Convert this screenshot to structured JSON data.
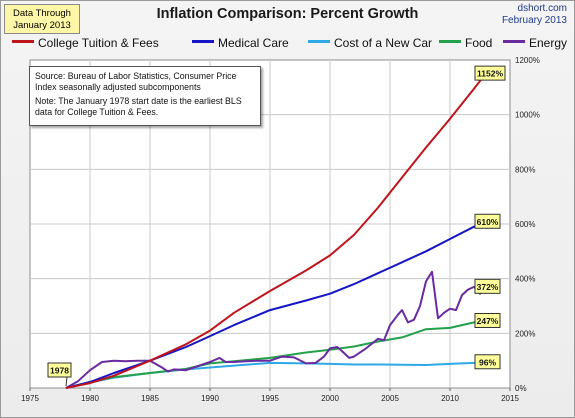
{
  "note": {
    "line1": "Data Through",
    "line2": "January 2013"
  },
  "title": "Inflation Comparison: Percent Growth",
  "credit": {
    "site": "dshort.com",
    "date": "February 2013"
  },
  "source_text": "Source: Bureau of Labor Statistics, Consumer Price Index seasonally adjusted subcomponents",
  "note_text": "Note: The January 1978 start date is the earliest BLS data for College Tuition & Fees.",
  "start_label": "1978",
  "colors": {
    "tuition": "#c0141c",
    "medical": "#1515c8",
    "car": "#2ea8e6",
    "food": "#23a04a",
    "energy": "#6a2aa0",
    "label_bg": "#ffff9a",
    "grid": "#c8c8c8"
  },
  "chart_data": {
    "type": "line",
    "title": "Inflation Comparison: Percent Growth",
    "xlim": [
      1975,
      2015
    ],
    "ylim": [
      0,
      1200
    ],
    "x_ticks": [
      1975,
      1980,
      1985,
      1990,
      1995,
      2000,
      2005,
      2010,
      2015
    ],
    "y_ticks": [
      0,
      200,
      400,
      600,
      800,
      1000,
      1200
    ],
    "y_tick_labels": [
      "0%",
      "200%",
      "400%",
      "600%",
      "800%",
      "1000%",
      "1200%"
    ],
    "grid": true,
    "legend": "top",
    "series": [
      {
        "key": "tuition",
        "name": "College Tuition & Fees",
        "end_label": "1152%",
        "x": [
          1978,
          1980,
          1982,
          1985,
          1988,
          1990,
          1992,
          1995,
          1998,
          2000,
          2002,
          2004,
          2006,
          2008,
          2010,
          2012,
          2013
        ],
        "y": [
          0,
          18,
          45,
          100,
          160,
          210,
          275,
          355,
          430,
          485,
          560,
          660,
          770,
          880,
          985,
          1095,
          1152
        ]
      },
      {
        "key": "medical",
        "name": "Medical Care",
        "end_label": "610%",
        "x": [
          1978,
          1980,
          1982,
          1985,
          1988,
          1990,
          1992,
          1995,
          1998,
          2000,
          2002,
          2004,
          2006,
          2008,
          2010,
          2012,
          2013
        ],
        "y": [
          0,
          22,
          55,
          100,
          150,
          190,
          230,
          285,
          320,
          345,
          380,
          420,
          460,
          500,
          545,
          590,
          610
        ]
      },
      {
        "key": "car",
        "name": "Cost of a New Car",
        "end_label": "96%",
        "x": [
          1978,
          1980,
          1982,
          1985,
          1988,
          1990,
          1992,
          1995,
          1998,
          2000,
          2002,
          2004,
          2006,
          2008,
          2010,
          2012,
          2013
        ],
        "y": [
          0,
          20,
          38,
          55,
          68,
          75,
          82,
          92,
          90,
          88,
          86,
          86,
          85,
          84,
          88,
          92,
          96
        ]
      },
      {
        "key": "food",
        "name": "Food",
        "end_label": "247%",
        "x": [
          1978,
          1980,
          1982,
          1985,
          1988,
          1990,
          1992,
          1995,
          1998,
          2000,
          2002,
          2004,
          2006,
          2008,
          2010,
          2012,
          2013
        ],
        "y": [
          0,
          22,
          40,
          55,
          70,
          90,
          98,
          110,
          130,
          140,
          152,
          170,
          185,
          215,
          220,
          240,
          247
        ]
      },
      {
        "key": "energy",
        "name": "Energy",
        "end_label": "372%",
        "x": [
          1978,
          1979,
          1980,
          1981,
          1982,
          1983,
          1984,
          1985,
          1986,
          1986.5,
          1987,
          1988,
          1989,
          1990,
          1990.8,
          1991.3,
          1992,
          1993,
          1994,
          1995,
          1996,
          1997,
          1998,
          1998.8,
          1999.5,
          2000,
          2000.6,
          2001,
          2001.6,
          2002,
          2003,
          2004,
          2004.5,
          2005,
          2005.7,
          2006,
          2006.5,
          2007,
          2007.5,
          2008,
          2008.5,
          2009,
          2009.5,
          2010,
          2010.5,
          2011,
          2011.5,
          2012,
          2012.5,
          2013
        ],
        "y": [
          0,
          25,
          65,
          95,
          100,
          98,
          100,
          100,
          75,
          60,
          68,
          65,
          80,
          95,
          110,
          95,
          95,
          98,
          100,
          100,
          115,
          112,
          90,
          92,
          115,
          145,
          150,
          135,
          110,
          115,
          145,
          180,
          175,
          230,
          270,
          285,
          240,
          250,
          300,
          390,
          425,
          255,
          275,
          290,
          285,
          340,
          360,
          370,
          345,
          372
        ]
      }
    ]
  }
}
